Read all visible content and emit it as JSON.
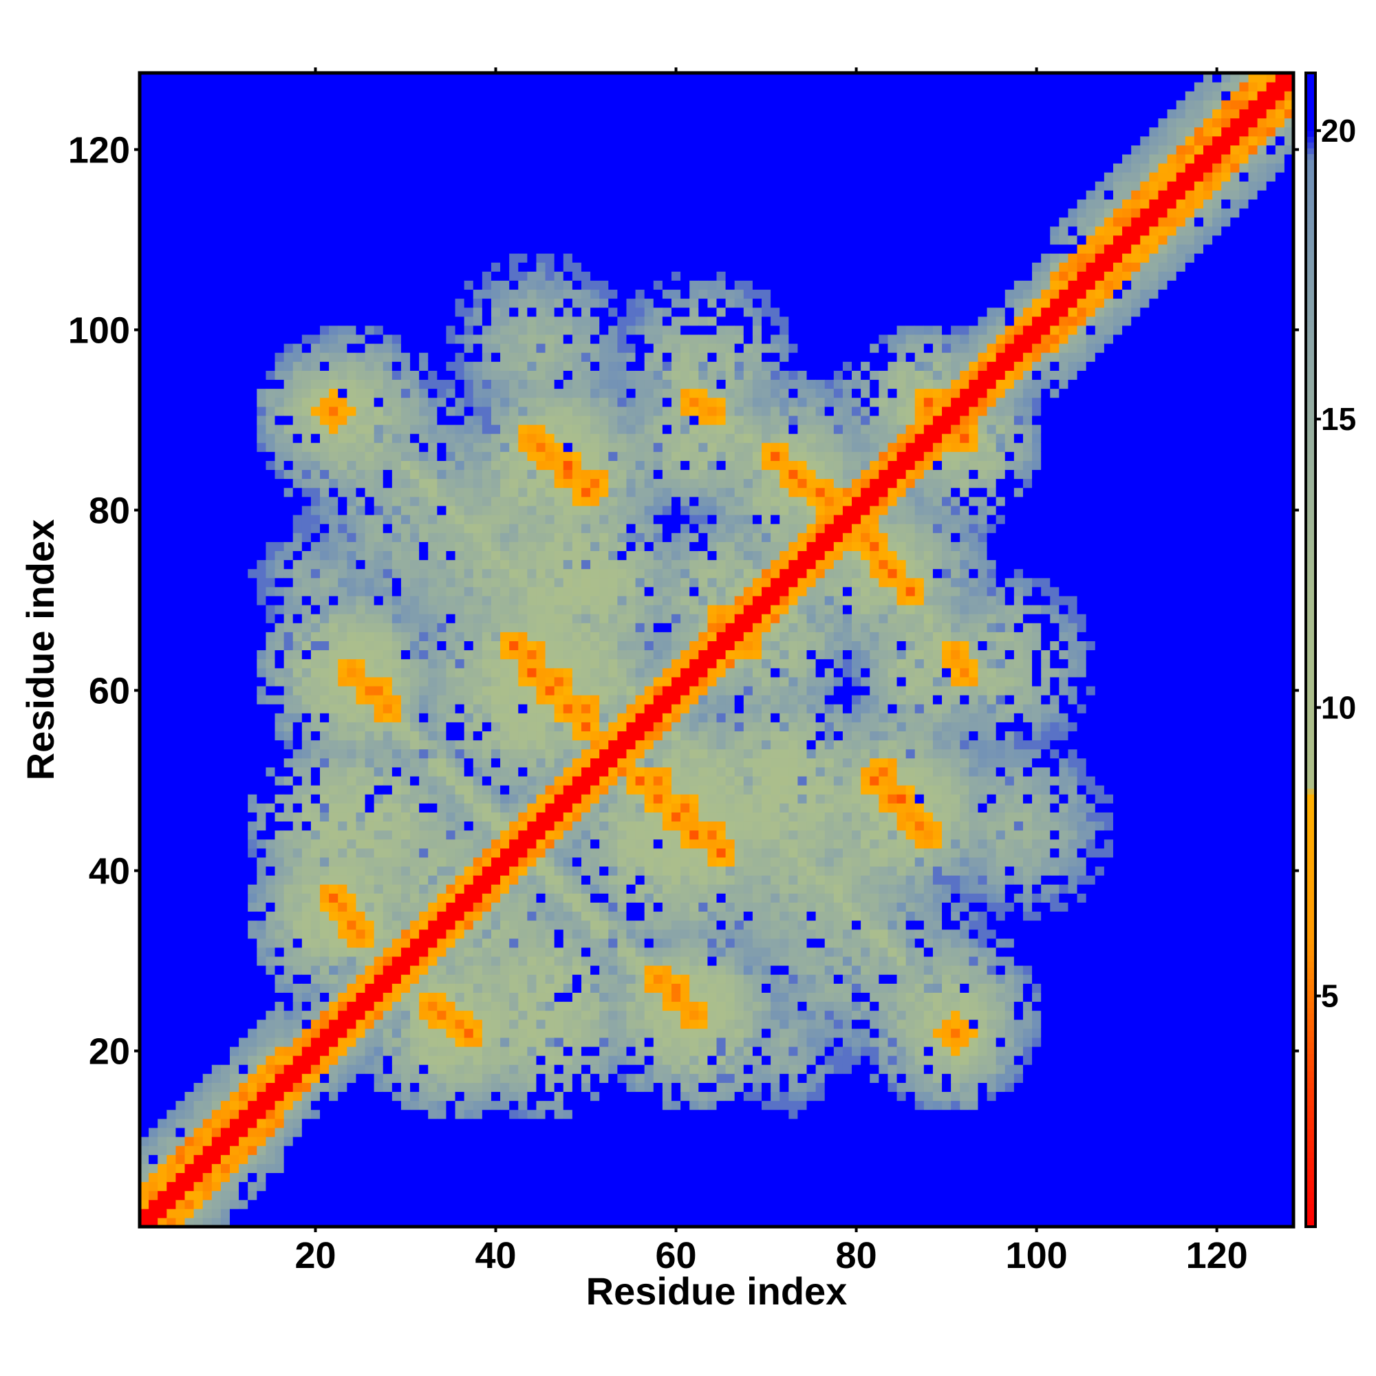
{
  "chart_data": {
    "type": "heatmap",
    "title": "",
    "xlabel": "Residue index",
    "ylabel": "Residue index",
    "xlim": [
      1,
      128
    ],
    "ylim": [
      1,
      128
    ],
    "x_ticks": [
      20,
      40,
      60,
      80,
      100,
      120
    ],
    "y_ticks": [
      20,
      40,
      60,
      80,
      100,
      120
    ],
    "matrix_size": 128,
    "colorbar": {
      "range": [
        1,
        21
      ],
      "ticks": [
        5,
        10,
        15,
        20
      ],
      "stops": [
        {
          "value": 1,
          "color": "#ff0000"
        },
        {
          "value": 3.5,
          "color": "#ff4000"
        },
        {
          "value": 6,
          "color": "#ff9900"
        },
        {
          "value": 8.5,
          "color": "#ffb000"
        },
        {
          "value": 8.6,
          "color": "#aebf88"
        },
        {
          "value": 12,
          "color": "#a9bd8f"
        },
        {
          "value": 16,
          "color": "#8fa8a6"
        },
        {
          "value": 19.5,
          "color": "#6f8fb8"
        },
        {
          "value": 20,
          "color": "#0000ff"
        },
        {
          "value": 21,
          "color": "#0000ff"
        }
      ]
    },
    "background_value": 21,
    "diagonal_band": {
      "core_value": 1,
      "halfwidth_core": 1.5,
      "halfwidth_orange": 3.5,
      "halfwidth_green": 7
    },
    "features": [
      {
        "cx": 22,
        "cy": 91,
        "sx": 5,
        "sy": 4,
        "value": 10,
        "hot": [
          [
            22,
            91,
            5
          ]
        ]
      },
      {
        "cx": 47,
        "cy": 84,
        "sx": 7,
        "sy": 6,
        "value": 10,
        "hot": [
          [
            44,
            88,
            4
          ],
          [
            46,
            86,
            4
          ],
          [
            48,
            84,
            4
          ],
          [
            50,
            82,
            4
          ]
        ]
      },
      {
        "cx": 63,
        "cy": 88,
        "sx": 6,
        "sy": 5,
        "value": 11,
        "hot": [
          [
            64,
            91,
            4
          ]
        ]
      },
      {
        "cx": 73,
        "cy": 84,
        "sx": 6,
        "sy": 5,
        "value": 11,
        "hot": [
          [
            71,
            86,
            4
          ],
          [
            74,
            83,
            4
          ],
          [
            77,
            81,
            4
          ]
        ]
      },
      {
        "cx": 88,
        "cy": 92,
        "sx": 6,
        "sy": 5,
        "value": 11,
        "hot": [
          [
            88,
            92,
            4
          ]
        ]
      },
      {
        "cx": 25,
        "cy": 61,
        "sx": 5,
        "sy": 6,
        "value": 10,
        "hot": [
          [
            24,
            62,
            4
          ],
          [
            26,
            60,
            4
          ],
          [
            28,
            58,
            4
          ]
        ]
      },
      {
        "cx": 44,
        "cy": 60,
        "sx": 8,
        "sy": 8,
        "value": 10,
        "hot": [
          [
            42,
            65,
            4
          ],
          [
            44,
            62,
            4
          ],
          [
            46,
            60,
            4
          ],
          [
            48,
            58,
            4
          ],
          [
            50,
            56,
            4
          ]
        ]
      },
      {
        "cx": 70,
        "cy": 66,
        "sx": 6,
        "sy": 6,
        "value": 11,
        "hot": [
          [
            65,
            68,
            4
          ]
        ]
      },
      {
        "cx": 83,
        "cy": 73,
        "sx": 7,
        "sy": 6,
        "value": 11,
        "hot": [
          [
            82,
            76,
            4
          ],
          [
            84,
            73,
            4
          ],
          [
            86,
            71,
            4
          ]
        ]
      },
      {
        "cx": 96,
        "cy": 63,
        "sx": 6,
        "sy": 6,
        "value": 12,
        "hot": [
          [
            92,
            62,
            4
          ]
        ]
      },
      {
        "cx": 25,
        "cy": 45,
        "sx": 7,
        "sy": 6,
        "value": 10,
        "hot": []
      },
      {
        "cx": 22,
        "cy": 36,
        "sx": 5,
        "sy": 5,
        "value": 10,
        "hot": [
          [
            22,
            37,
            4
          ],
          [
            24,
            34,
            4
          ]
        ]
      },
      {
        "cx": 62,
        "cy": 47,
        "sx": 7,
        "sy": 7,
        "value": 10,
        "hot": [
          [
            58,
            50,
            4
          ],
          [
            61,
            47,
            4
          ],
          [
            64,
            44,
            4
          ]
        ]
      },
      {
        "cx": 72,
        "cy": 49,
        "sx": 7,
        "sy": 7,
        "value": 10,
        "hot": []
      },
      {
        "cx": 86,
        "cy": 47,
        "sx": 7,
        "sy": 6,
        "value": 11,
        "hot": [
          [
            83,
            51,
            4
          ],
          [
            85,
            48,
            4
          ],
          [
            87,
            45,
            4
          ]
        ]
      },
      {
        "cx": 35,
        "cy": 23,
        "sx": 6,
        "sy": 6,
        "value": 10,
        "hot": [
          [
            33,
            25,
            4
          ],
          [
            36,
            23,
            4
          ]
        ]
      },
      {
        "cx": 62,
        "cy": 24,
        "sx": 6,
        "sy": 6,
        "value": 10,
        "hot": [
          [
            60,
            27,
            4
          ],
          [
            62,
            24,
            4
          ]
        ]
      },
      {
        "cx": 90,
        "cy": 24,
        "sx": 6,
        "sy": 6,
        "value": 11,
        "hot": [
          [
            91,
            22,
            4
          ]
        ]
      },
      {
        "cx": 40,
        "cy": 32,
        "sx": 8,
        "sy": 8,
        "value": 12,
        "hot": []
      },
      {
        "cx": 80,
        "cy": 32,
        "sx": 9,
        "sy": 8,
        "value": 13,
        "hot": []
      },
      {
        "cx": 98,
        "cy": 45,
        "sx": 6,
        "sy": 6,
        "value": 13,
        "hot": []
      },
      {
        "cx": 40,
        "cy": 75,
        "sx": 8,
        "sy": 8,
        "value": 12,
        "hot": []
      },
      {
        "cx": 20,
        "cy": 72,
        "sx": 4,
        "sy": 4,
        "value": 14,
        "hot": []
      }
    ],
    "grid": false,
    "legend": "colorbar-right"
  }
}
